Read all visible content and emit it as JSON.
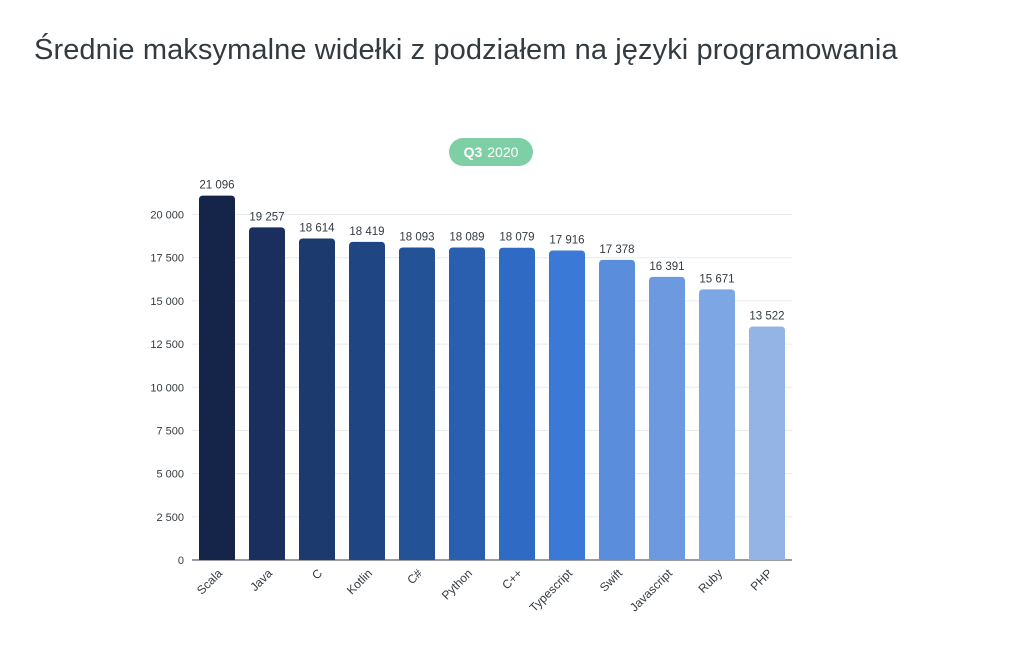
{
  "title": "Średnie maksymalne widełki z podziałem na języki programowania",
  "badge": {
    "quarter": "Q3",
    "year": "2020"
  },
  "colors": {
    "title": "#333a40",
    "badge": "#7fcfa6",
    "bars": [
      "#15254a",
      "#1a2f5e",
      "#1c3a6e",
      "#1f4583",
      "#245296",
      "#2a5eae",
      "#2f6bc4",
      "#3b79d6",
      "#5a8ddc",
      "#6d99e1",
      "#7da6e4",
      "#95b4e6"
    ]
  },
  "chart_data": {
    "type": "bar",
    "categories": [
      "Scala",
      "Java",
      "C",
      "Kotlin",
      "C#",
      "Python",
      "C++",
      "Typescript",
      "Swift",
      "Javascript",
      "Ruby",
      "PHP"
    ],
    "values": [
      21096,
      19257,
      18614,
      18419,
      18093,
      18089,
      18079,
      17916,
      17378,
      16391,
      15671,
      13522
    ],
    "value_labels": [
      "21 096",
      "19 257",
      "18 614",
      "18 419",
      "18 093",
      "18 089",
      "18 079",
      "17 916",
      "17 378",
      "16 391",
      "15 671",
      "13 522"
    ],
    "yticks": [
      0,
      2500,
      5000,
      7500,
      10000,
      12500,
      15000,
      17500,
      20000
    ],
    "ytick_labels": [
      "0",
      "2 500",
      "5 000",
      "7 500",
      "10 000",
      "12 500",
      "15 000",
      "17 500",
      "20 000"
    ],
    "ylim": [
      0,
      22000
    ],
    "xlabel": "",
    "ylabel": "",
    "grid": true
  }
}
